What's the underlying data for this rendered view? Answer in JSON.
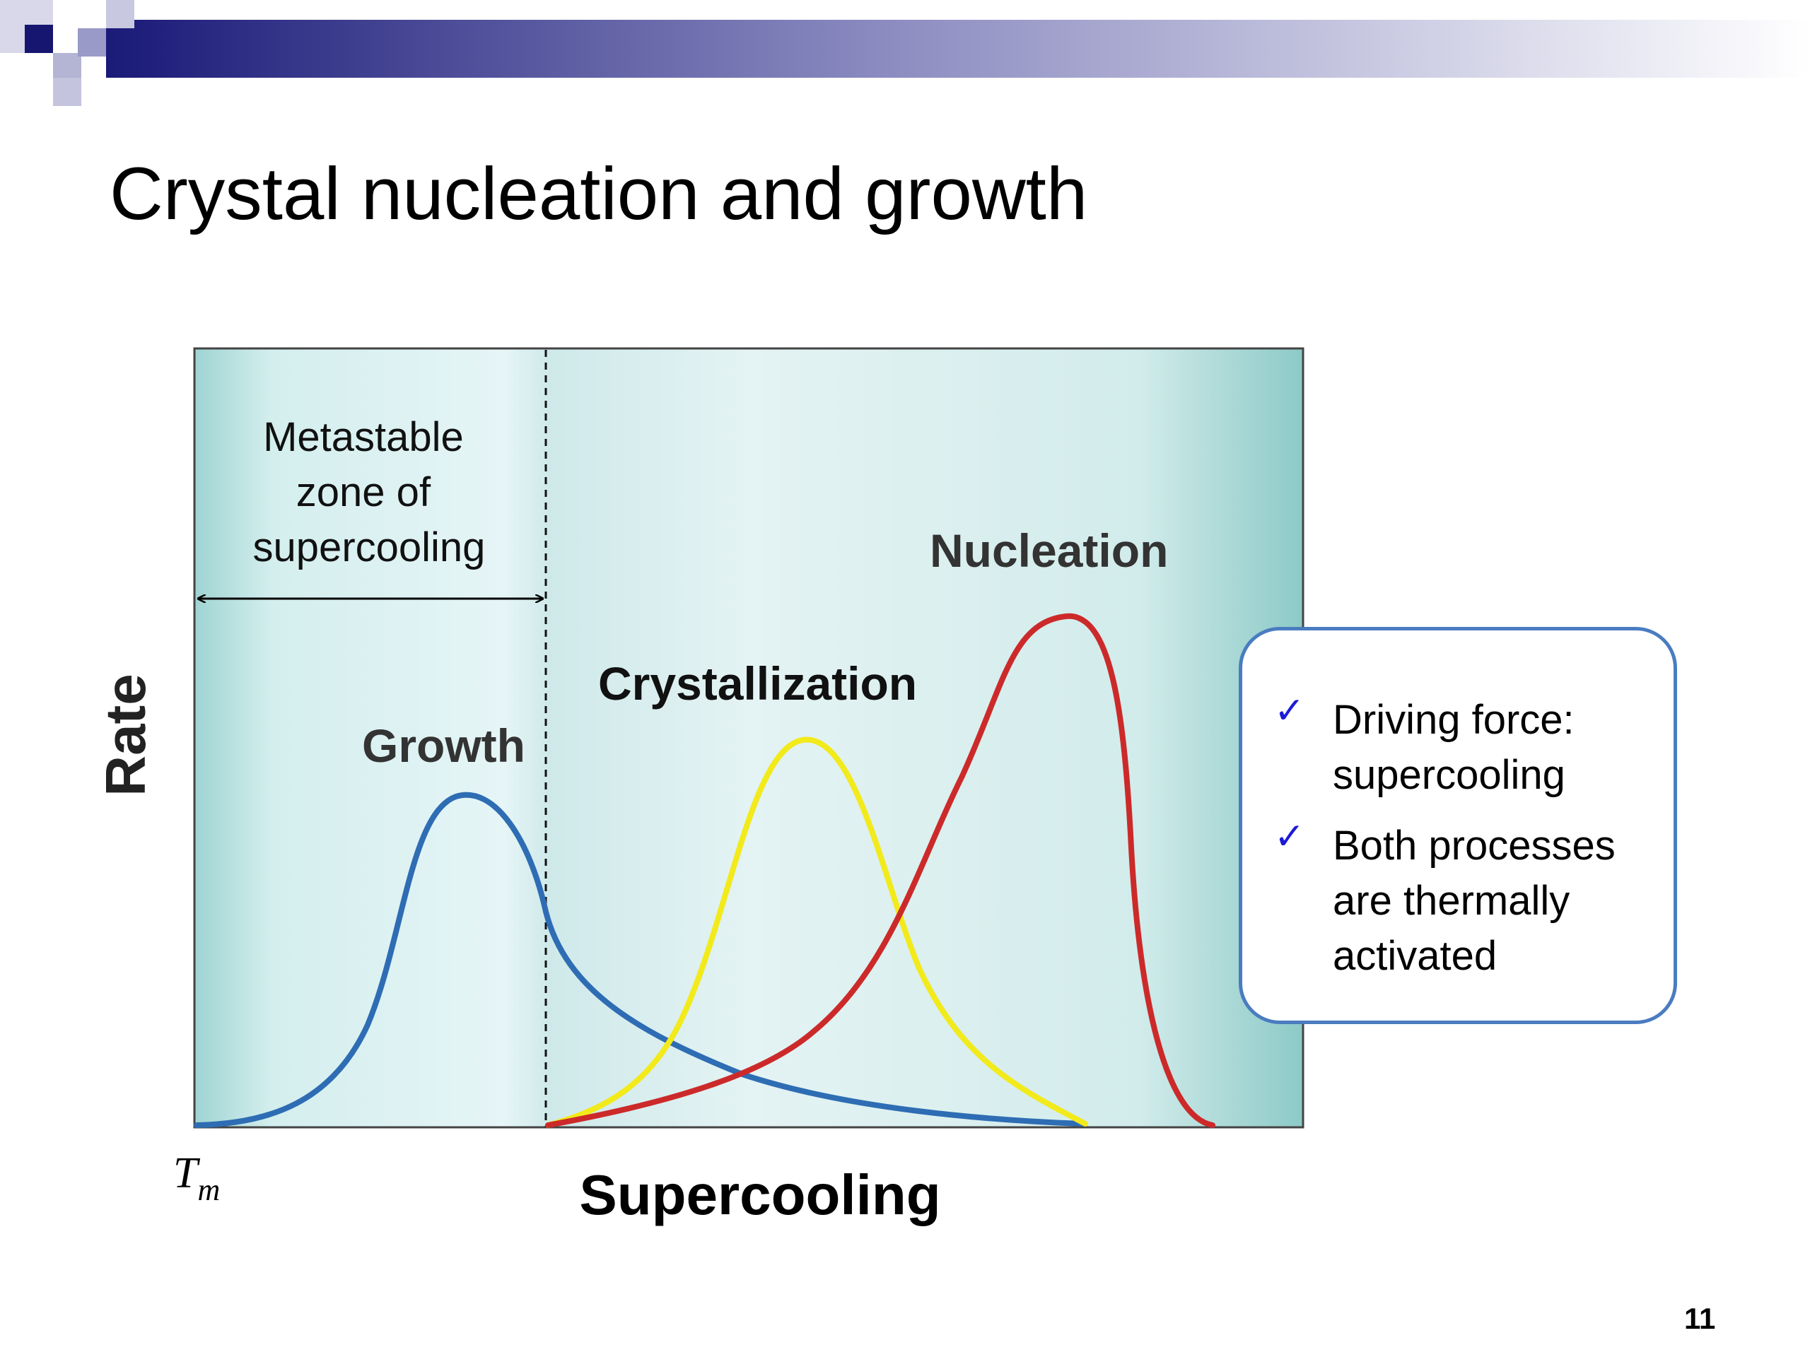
{
  "slide": {
    "title": "Crystal nucleation and growth",
    "page_number": "11",
    "header_colors": {
      "dark": "#1a1a78",
      "mid": "#8a8ac0",
      "light": "#d4d4e6"
    }
  },
  "diagram": {
    "zone_label": [
      "Metastable",
      "zone of",
      "supercooling"
    ],
    "y_axis_label": "Rate",
    "x_axis_label": "Supercooling",
    "tm_symbol": "T",
    "tm_subscript": "m",
    "curves": [
      {
        "name": "Growth",
        "color": "#2e6db4"
      },
      {
        "name": "Crystallization",
        "color": "#f2ea1a"
      },
      {
        "name": "Nucleation",
        "color": "#cc2a2a"
      }
    ]
  },
  "callout": {
    "items": [
      {
        "check": "✓",
        "lines": [
          "Driving force:",
          "supercooling"
        ]
      },
      {
        "check": "✓",
        "lines": [
          "Both processes",
          "are thermally",
          "activated"
        ]
      }
    ]
  }
}
